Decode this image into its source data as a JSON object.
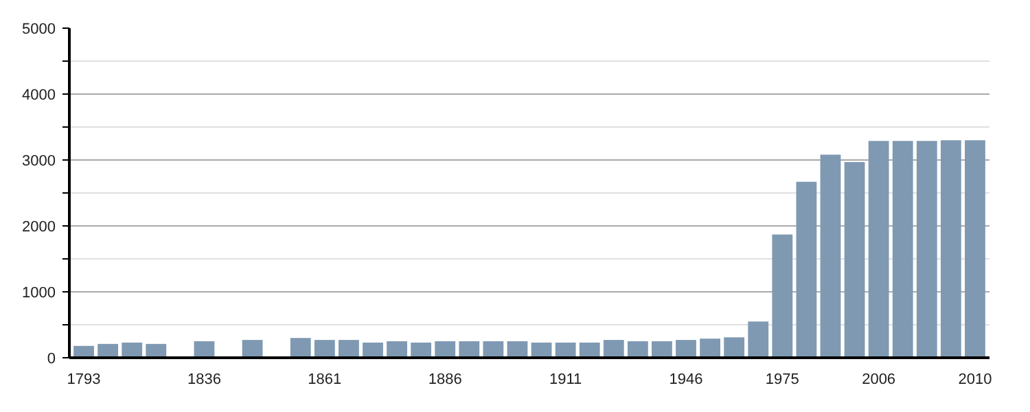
{
  "chart_data": {
    "type": "bar",
    "categories": [
      "1793",
      null,
      null,
      null,
      null,
      "1836",
      null,
      null,
      null,
      null,
      "1861",
      null,
      null,
      null,
      null,
      "1886",
      null,
      null,
      null,
      null,
      "1911",
      null,
      null,
      null,
      null,
      "1946",
      null,
      null,
      null,
      "1975",
      null,
      null,
      null,
      "2006",
      null,
      null,
      null,
      "2010"
    ],
    "values": [
      180,
      210,
      230,
      210,
      null,
      250,
      null,
      270,
      null,
      300,
      270,
      270,
      230,
      250,
      230,
      250,
      250,
      250,
      250,
      230,
      230,
      230,
      270,
      250,
      250,
      270,
      290,
      310,
      550,
      1870,
      2670,
      3080,
      2970,
      3290,
      3290,
      3290,
      3300,
      3300
    ],
    "color": "#7f99b2",
    "ylim": [
      0,
      5000
    ],
    "yticks": [
      0,
      {
        "value": 500,
        "label": null
      },
      1000,
      {
        "value": 1500,
        "label": null
      },
      2000,
      {
        "value": 2500,
        "label": null
      },
      3000,
      {
        "value": 3500,
        "label": null
      },
      4000,
      {
        "value": 4500,
        "label": null
      },
      5000
    ],
    "grid": "y"
  }
}
